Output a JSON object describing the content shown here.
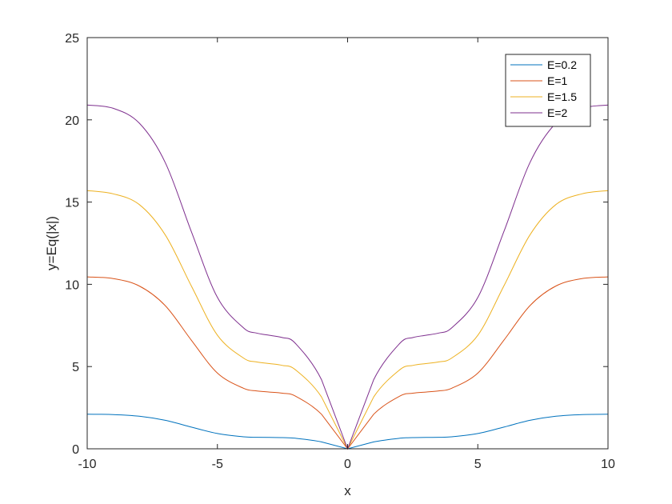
{
  "chart_data": {
    "type": "line",
    "title": "",
    "xlabel": "x",
    "ylabel": "y=Eq(|x|)",
    "xlim": [
      -10,
      10
    ],
    "ylim": [
      0,
      25
    ],
    "xticks": [
      -10,
      -5,
      0,
      5,
      10
    ],
    "yticks": [
      0,
      5,
      10,
      15,
      20,
      25
    ],
    "xtick_labels": [
      "-10",
      "-5",
      "0",
      "5",
      "10"
    ],
    "ytick_labels": [
      "0",
      "5",
      "10",
      "15",
      "20",
      "25"
    ],
    "grid": false,
    "legend_position": "top-right",
    "x": [
      0,
      1,
      2,
      2.5,
      3,
      3.5,
      4,
      5,
      6,
      7,
      8,
      9,
      10
    ],
    "series": [
      {
        "name": "E=0.2",
        "color": "#0072BD",
        "values": [
          0,
          0.42,
          0.64,
          0.68,
          0.69,
          0.7,
          0.73,
          0.93,
          1.32,
          1.73,
          1.98,
          2.08,
          2.1
        ]
      },
      {
        "name": "E=1",
        "color": "#D95319",
        "values": [
          0,
          2.1,
          3.2,
          3.38,
          3.45,
          3.52,
          3.68,
          4.6,
          6.6,
          8.7,
          9.9,
          10.35,
          10.45
        ]
      },
      {
        "name": "E=1.5",
        "color": "#EDB120",
        "values": [
          0,
          3.15,
          4.8,
          5.07,
          5.18,
          5.28,
          5.52,
          6.9,
          9.9,
          13.0,
          14.85,
          15.5,
          15.7
        ]
      },
      {
        "name": "E=2",
        "color": "#7E2F8E",
        "values": [
          0,
          4.2,
          6.4,
          6.76,
          6.9,
          7.04,
          7.36,
          9.2,
          13.2,
          17.4,
          19.8,
          20.7,
          20.9
        ]
      }
    ],
    "symmetry": "even"
  }
}
